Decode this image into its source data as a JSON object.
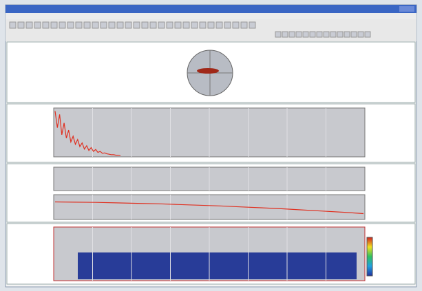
{
  "panels": [
    {
      "kind": "polar"
    },
    {
      "kind": "spectrum",
      "color": "#e03020",
      "ylim": [
        0,
        100
      ],
      "values": [
        95,
        60,
        88,
        45,
        70,
        38,
        55,
        30,
        42,
        25,
        35,
        20,
        28,
        15,
        22,
        12,
        18,
        10,
        14,
        8,
        10,
        6,
        7,
        5,
        4,
        3,
        3,
        2,
        2,
        1
      ]
    },
    {
      "kind": "trend",
      "color": "#e03020",
      "ylim": [
        0,
        100
      ],
      "values": [
        72,
        71,
        70,
        68,
        66,
        64,
        61,
        58,
        55,
        51,
        47,
        43,
        38,
        33,
        28,
        22
      ]
    },
    {
      "kind": "spectrogram"
    }
  ]
}
